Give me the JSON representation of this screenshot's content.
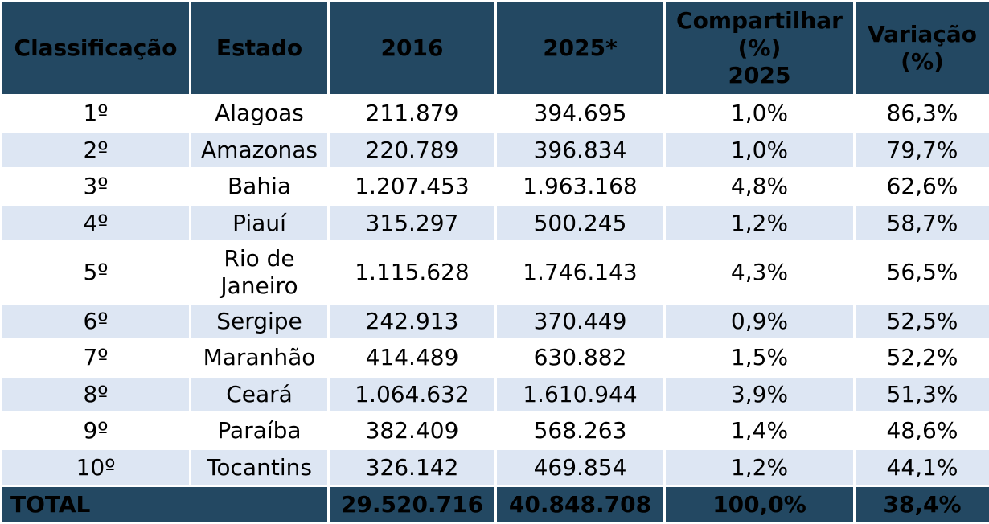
{
  "headers": {
    "rank": "Classificação",
    "state": "Estado",
    "y2016": "2016",
    "y2025": "2025*",
    "share": "Compartilhar\n(%)\n2025",
    "variation": "Variação\n(%)"
  },
  "rows": [
    {
      "rank": "1º",
      "state": "Alagoas",
      "y2016": "211.879",
      "y2025": "394.695",
      "share": "1,0%",
      "variation": "86,3%"
    },
    {
      "rank": "2º",
      "state": "Amazonas",
      "y2016": "220.789",
      "y2025": "396.834",
      "share": "1,0%",
      "variation": "79,7%"
    },
    {
      "rank": "3º",
      "state": "Bahia",
      "y2016": "1.207.453",
      "y2025": "1.963.168",
      "share": "4,8%",
      "variation": "62,6%"
    },
    {
      "rank": "4º",
      "state": "Piauí",
      "y2016": "315.297",
      "y2025": "500.245",
      "share": "1,2%",
      "variation": "58,7%"
    },
    {
      "rank": "5º",
      "state": "Rio de Janeiro",
      "y2016": "1.115.628",
      "y2025": "1.746.143",
      "share": "4,3%",
      "variation": "56,5%"
    },
    {
      "rank": "6º",
      "state": "Sergipe",
      "y2016": "242.913",
      "y2025": "370.449",
      "share": "0,9%",
      "variation": "52,5%"
    },
    {
      "rank": "7º",
      "state": "Maranhão",
      "y2016": "414.489",
      "y2025": "630.882",
      "share": "1,5%",
      "variation": "52,2%"
    },
    {
      "rank": "8º",
      "state": "Ceará",
      "y2016": "1.064.632",
      "y2025": "1.610.944",
      "share": "3,9%",
      "variation": "51,3%"
    },
    {
      "rank": "9º",
      "state": "Paraíba",
      "y2016": "382.409",
      "y2025": "568.263",
      "share": "1,4%",
      "variation": "48,6%"
    },
    {
      "rank": "10º",
      "state": "Tocantins",
      "y2016": "326.142",
      "y2025": "469.854",
      "share": "1,2%",
      "variation": "44,1%"
    }
  ],
  "total": {
    "label": "TOTAL",
    "y2016": "29.520.716",
    "y2025": "40.848.708",
    "share": "100,0%",
    "variation": "38,4%"
  },
  "colors": {
    "header_bg": "#234862",
    "stripe_bg": "#dde6f3"
  }
}
